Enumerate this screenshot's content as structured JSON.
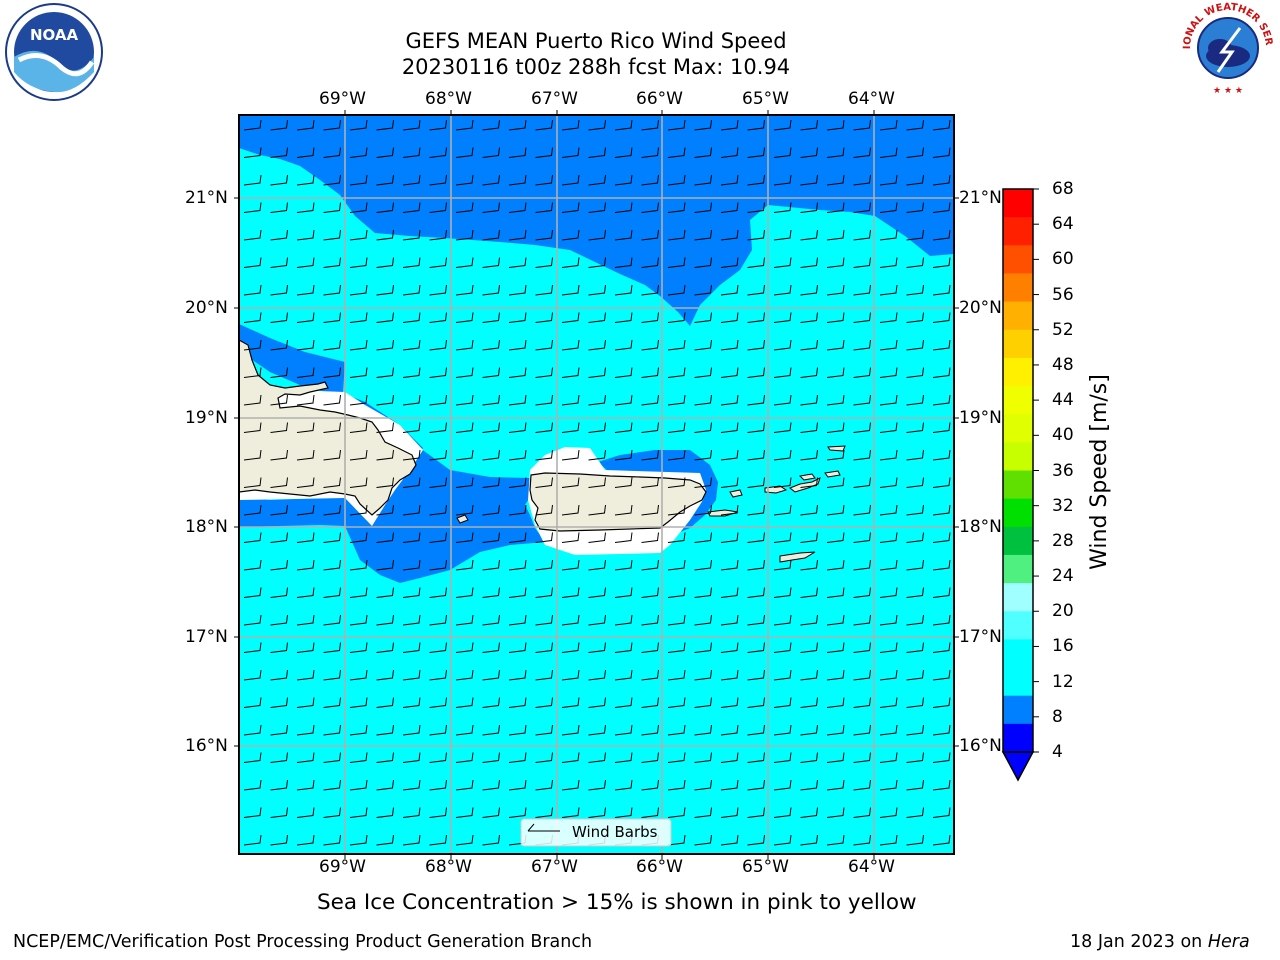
{
  "header": {
    "title_line1": "GEFS MEAN Puerto Rico Wind Speed",
    "title_line2": "20230116 t00z 288h fcst   Max: 10.94"
  },
  "map": {
    "lon_labels": [
      "69°W",
      "68°W",
      "67°W",
      "66°W",
      "65°W",
      "64°W"
    ],
    "lat_labels": [
      "21°N",
      "20°N",
      "19°N",
      "18°N",
      "17°N",
      "16°N"
    ],
    "colors": {
      "ocean_base": "#00ffff",
      "wind_4_8": "#0080ff",
      "land": "#efeedc",
      "gridline": "#b0b0b0",
      "coastline": "#000000"
    },
    "legend_label": "Wind Barbs"
  },
  "colorbar": {
    "label": "Wind Speed [m/s]",
    "ticks": [
      "68",
      "64",
      "60",
      "56",
      "52",
      "48",
      "44",
      "40",
      "36",
      "32",
      "28",
      "24",
      "20",
      "16",
      "12",
      "8",
      "4"
    ],
    "colors_top_to_bottom": [
      "#ff0000",
      "#ff2000",
      "#ff5000",
      "#ff8000",
      "#ffb000",
      "#ffd000",
      "#fff000",
      "#f0ff00",
      "#e0ff00",
      "#c8ff00",
      "#60e000",
      "#00e000",
      "#00c040",
      "#50f080",
      "#a0ffff",
      "#50ffff",
      "#00ffff",
      "#00ffff",
      "#0080ff",
      "#0000ff"
    ],
    "extend_color": "#0000ff"
  },
  "caption": "Sea Ice Concentration > 15% is shown in pink to yellow",
  "footer": {
    "left": "NCEP/EMC/Verification Post Processing Product Generation Branch",
    "date": "18 Jan 2023 on ",
    "machine": "Hera"
  },
  "logos": {
    "noaa_text": "NOAA",
    "nws_text": "NATIONAL WEATHER SERVICE"
  }
}
